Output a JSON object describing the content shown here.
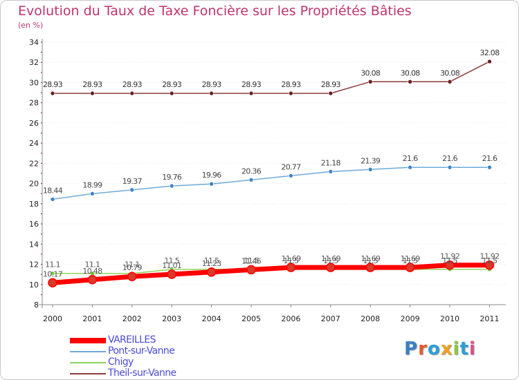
{
  "header": {
    "title": "Evolution du Taux de Taxe Foncière sur les Propriétés Bâties",
    "unit": "(en %)"
  },
  "logo": {
    "text": "Proxiti"
  },
  "chart_data": {
    "type": "line",
    "title": "Evolution du Taux de Taxe Foncière sur les Propriétés Bâties",
    "ylabel": "(en %)",
    "xlabel": "",
    "ylim": [
      8,
      34
    ],
    "yticks": [
      "8",
      "10",
      "12",
      "14",
      "16",
      "18",
      "20",
      "22",
      "24",
      "26",
      "28",
      "30",
      "32",
      "34"
    ],
    "categories": [
      "2000",
      "2001",
      "2002",
      "2003",
      "2004",
      "2005",
      "2006",
      "2007",
      "2008",
      "2009",
      "2010",
      "2011"
    ],
    "series": [
      {
        "name": "VAREILLES",
        "values": [
          10.17,
          10.48,
          10.79,
          11.01,
          11.23,
          11.46,
          11.69,
          11.69,
          11.69,
          11.69,
          11.92,
          11.92
        ],
        "labels": [
          "10.17",
          "10.48",
          "10.79",
          "11.01",
          "11.23",
          "11.46",
          "11.69",
          "11.69",
          "11.69",
          "11.69",
          "11.92",
          "11.92"
        ],
        "color": "#ff0000",
        "marker": "#d93a2a",
        "width": 7
      },
      {
        "name": "Pont-sur-Vanne",
        "values": [
          18.44,
          18.99,
          19.37,
          19.76,
          19.96,
          20.36,
          20.77,
          21.18,
          21.39,
          21.6,
          21.6,
          21.6
        ],
        "labels": [
          "18.44",
          "18.99",
          "19.37",
          "19.76",
          "19.96",
          "20.36",
          "20.77",
          "21.18",
          "21.39",
          "21.6",
          "21.6",
          "21.6"
        ],
        "color": "#6ea9d8",
        "marker": "#3f86c8",
        "width": 1.5
      },
      {
        "name": "Chigy",
        "values": [
          11.1,
          11.1,
          11.1,
          11.5,
          11.5,
          11.5,
          11.5,
          11.5,
          11.5,
          11.5,
          11.5,
          11.5
        ],
        "labels": [
          "11.1",
          "11.1",
          "11.1",
          "11.5",
          "11.5",
          "11.5",
          "11.5",
          "11.5",
          "11.5",
          "11.5",
          "11.5",
          "11.5"
        ],
        "color": "#8fd45a",
        "marker": "#7bc93e",
        "width": 1.5
      },
      {
        "name": "Theil-sur-Vanne",
        "values": [
          28.93,
          28.93,
          28.93,
          28.93,
          28.93,
          28.93,
          28.93,
          28.93,
          30.08,
          30.08,
          30.08,
          32.08
        ],
        "labels": [
          "28.93",
          "28.93",
          "28.93",
          "28.93",
          "28.93",
          "28.93",
          "28.93",
          "28.93",
          "30.08",
          "30.08",
          "30.08",
          "32.08"
        ],
        "color": "#8a3b3b",
        "marker": "#6b1f1f",
        "width": 1.5
      }
    ]
  }
}
